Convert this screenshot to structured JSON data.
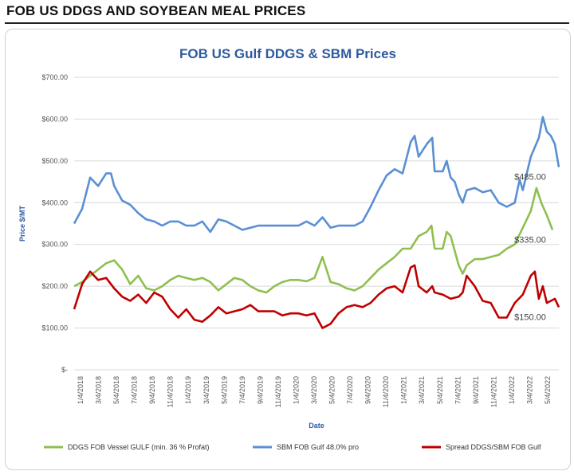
{
  "header": {
    "title": "FOB US DDGS AND SOYBEAN MEAL PRICES"
  },
  "colors": {
    "ddgs": "#8fbf50",
    "sbm": "#5a8fd4",
    "spread": "#c00000",
    "title": "#2e5aa0",
    "grid": "#d9d9d9"
  },
  "chart_data": {
    "type": "line",
    "title": "FOB US Gulf DDGS & SBM Prices",
    "xlabel": "Date",
    "ylabel": "Price $/MT",
    "ylim": [
      0,
      700
    ],
    "ytick_labels": [
      "$-",
      "$100.00",
      "$200.00",
      "$300.00",
      "$400.00",
      "$500.00",
      "$600.00",
      "$700.00"
    ],
    "ytick_values": [
      0,
      100,
      200,
      300,
      400,
      500,
      600,
      700
    ],
    "xtick_labels": [
      "1/4/2018",
      "3/4/2018",
      "5/4/2018",
      "7/4/2018",
      "9/4/2018",
      "11/4/2018",
      "1/4/2019",
      "3/4/2019",
      "5/4/2019",
      "7/4/2019",
      "9/4/2019",
      "11/4/2019",
      "1/4/2020",
      "3/4/2020",
      "5/4/2020",
      "7/4/2020",
      "9/4/2020",
      "11/4/2020",
      "1/4/2021",
      "3/4/2021",
      "5/4/2021",
      "7/4/2021",
      "9/4/2021",
      "11/4/2021",
      "1/4/2022",
      "3/4/2022",
      "5/4/2022"
    ],
    "x_range_months": [
      0,
      52.5
    ],
    "series": [
      {
        "name": "DDGS FOB Vessel GULF  (min. 36 % Profat)",
        "key": "ddgs",
        "points": [
          [
            0,
            200
          ],
          [
            1,
            210
          ],
          [
            2,
            225
          ],
          [
            3,
            240
          ],
          [
            4,
            255
          ],
          [
            5,
            262
          ],
          [
            6,
            240
          ],
          [
            7,
            205
          ],
          [
            8,
            225
          ],
          [
            9,
            195
          ],
          [
            10,
            190
          ],
          [
            11,
            200
          ],
          [
            12,
            215
          ],
          [
            13,
            225
          ],
          [
            14,
            220
          ],
          [
            15,
            215
          ],
          [
            16,
            220
          ],
          [
            17,
            210
          ],
          [
            18,
            190
          ],
          [
            19,
            205
          ],
          [
            20,
            220
          ],
          [
            21,
            215
          ],
          [
            22,
            200
          ],
          [
            23,
            190
          ],
          [
            24,
            185
          ],
          [
            25,
            200
          ],
          [
            26,
            210
          ],
          [
            27,
            215
          ],
          [
            28,
            215
          ],
          [
            29,
            212
          ],
          [
            30,
            220
          ],
          [
            31,
            270
          ],
          [
            32,
            210
          ],
          [
            33,
            205
          ],
          [
            34,
            195
          ],
          [
            35,
            190
          ],
          [
            36,
            200
          ],
          [
            37,
            220
          ],
          [
            38,
            240
          ],
          [
            39,
            255
          ],
          [
            40,
            270
          ],
          [
            41,
            290
          ],
          [
            42,
            290
          ],
          [
            43,
            320
          ],
          [
            44,
            330
          ],
          [
            44.6,
            345
          ],
          [
            45,
            290
          ],
          [
            46,
            290
          ],
          [
            46.5,
            330
          ],
          [
            47,
            320
          ],
          [
            48,
            250
          ],
          [
            48.5,
            230
          ],
          [
            49,
            250
          ],
          [
            50,
            265
          ],
          [
            51,
            265
          ],
          [
            52,
            270
          ],
          [
            53,
            275
          ],
          [
            54,
            290
          ],
          [
            55,
            300
          ],
          [
            56,
            340
          ],
          [
            57,
            380
          ],
          [
            57.7,
            435
          ],
          [
            58.3,
            400
          ],
          [
            59,
            370
          ],
          [
            59.7,
            335
          ]
        ]
      },
      {
        "name": "SBM FOB Gulf 48.0% pro",
        "key": "sbm",
        "points": [
          [
            0,
            350
          ],
          [
            1,
            385
          ],
          [
            2,
            460
          ],
          [
            3,
            440
          ],
          [
            4,
            470
          ],
          [
            4.6,
            470
          ],
          [
            5,
            440
          ],
          [
            6,
            405
          ],
          [
            7,
            395
          ],
          [
            8,
            375
          ],
          [
            9,
            360
          ],
          [
            10,
            355
          ],
          [
            11,
            345
          ],
          [
            12,
            355
          ],
          [
            13,
            355
          ],
          [
            14,
            345
          ],
          [
            15,
            345
          ],
          [
            16,
            355
          ],
          [
            17,
            330
          ],
          [
            18,
            360
          ],
          [
            19,
            355
          ],
          [
            20,
            345
          ],
          [
            21,
            335
          ],
          [
            22,
            340
          ],
          [
            23,
            345
          ],
          [
            24,
            345
          ],
          [
            25,
            345
          ],
          [
            26,
            345
          ],
          [
            27,
            345
          ],
          [
            28,
            345
          ],
          [
            29,
            355
          ],
          [
            30,
            345
          ],
          [
            31,
            365
          ],
          [
            32,
            340
          ],
          [
            33,
            345
          ],
          [
            34,
            345
          ],
          [
            35,
            345
          ],
          [
            36,
            355
          ],
          [
            37,
            390
          ],
          [
            38,
            430
          ],
          [
            39,
            465
          ],
          [
            40,
            480
          ],
          [
            41,
            470
          ],
          [
            42,
            545
          ],
          [
            42.5,
            560
          ],
          [
            43,
            510
          ],
          [
            44,
            540
          ],
          [
            44.7,
            555
          ],
          [
            45,
            475
          ],
          [
            46,
            475
          ],
          [
            46.5,
            500
          ],
          [
            47,
            460
          ],
          [
            47.5,
            450
          ],
          [
            48,
            420
          ],
          [
            48.5,
            400
          ],
          [
            49,
            430
          ],
          [
            50,
            435
          ],
          [
            51,
            425
          ],
          [
            52,
            430
          ],
          [
            53,
            400
          ],
          [
            54,
            390
          ],
          [
            55,
            400
          ],
          [
            55.6,
            455
          ],
          [
            56,
            430
          ],
          [
            57,
            510
          ],
          [
            58,
            555
          ],
          [
            58.5,
            605
          ],
          [
            59,
            570
          ],
          [
            59.5,
            560
          ],
          [
            60,
            540
          ],
          [
            60.5,
            485
          ]
        ]
      },
      {
        "name": "Spread DDGS/SBM FOB Gulf",
        "key": "spread",
        "points": [
          [
            0,
            145
          ],
          [
            1,
            205
          ],
          [
            2,
            235
          ],
          [
            3,
            215
          ],
          [
            4,
            220
          ],
          [
            5,
            195
          ],
          [
            6,
            175
          ],
          [
            7,
            165
          ],
          [
            8,
            180
          ],
          [
            9,
            160
          ],
          [
            10,
            185
          ],
          [
            11,
            175
          ],
          [
            12,
            145
          ],
          [
            13,
            125
          ],
          [
            14,
            145
          ],
          [
            15,
            120
          ],
          [
            16,
            115
          ],
          [
            17,
            130
          ],
          [
            18,
            150
          ],
          [
            19,
            135
          ],
          [
            20,
            140
          ],
          [
            21,
            145
          ],
          [
            22,
            155
          ],
          [
            23,
            140
          ],
          [
            24,
            140
          ],
          [
            25,
            140
          ],
          [
            26,
            130
          ],
          [
            27,
            135
          ],
          [
            28,
            135
          ],
          [
            29,
            130
          ],
          [
            30,
            135
          ],
          [
            31,
            100
          ],
          [
            32,
            110
          ],
          [
            33,
            135
          ],
          [
            34,
            150
          ],
          [
            35,
            155
          ],
          [
            36,
            150
          ],
          [
            37,
            160
          ],
          [
            38,
            180
          ],
          [
            39,
            195
          ],
          [
            40,
            200
          ],
          [
            41,
            185
          ],
          [
            42,
            245
          ],
          [
            42.5,
            250
          ],
          [
            43,
            200
          ],
          [
            44,
            185
          ],
          [
            44.7,
            200
          ],
          [
            45,
            185
          ],
          [
            46,
            180
          ],
          [
            47,
            170
          ],
          [
            48,
            175
          ],
          [
            48.5,
            185
          ],
          [
            49,
            225
          ],
          [
            50,
            200
          ],
          [
            51,
            165
          ],
          [
            52,
            160
          ],
          [
            53,
            125
          ],
          [
            54,
            125
          ],
          [
            55,
            160
          ],
          [
            56,
            180
          ],
          [
            57,
            225
          ],
          [
            57.5,
            235
          ],
          [
            58,
            170
          ],
          [
            58.5,
            200
          ],
          [
            59,
            160
          ],
          [
            60,
            170
          ],
          [
            60.5,
            150
          ]
        ]
      }
    ],
    "end_labels": [
      {
        "key": "sbm",
        "text": "$485.00",
        "value": 485
      },
      {
        "key": "ddgs",
        "text": "$335.00",
        "value": 335
      },
      {
        "key": "spread",
        "text": "$150.00",
        "value": 150
      }
    ],
    "legend_position": "bottom"
  }
}
